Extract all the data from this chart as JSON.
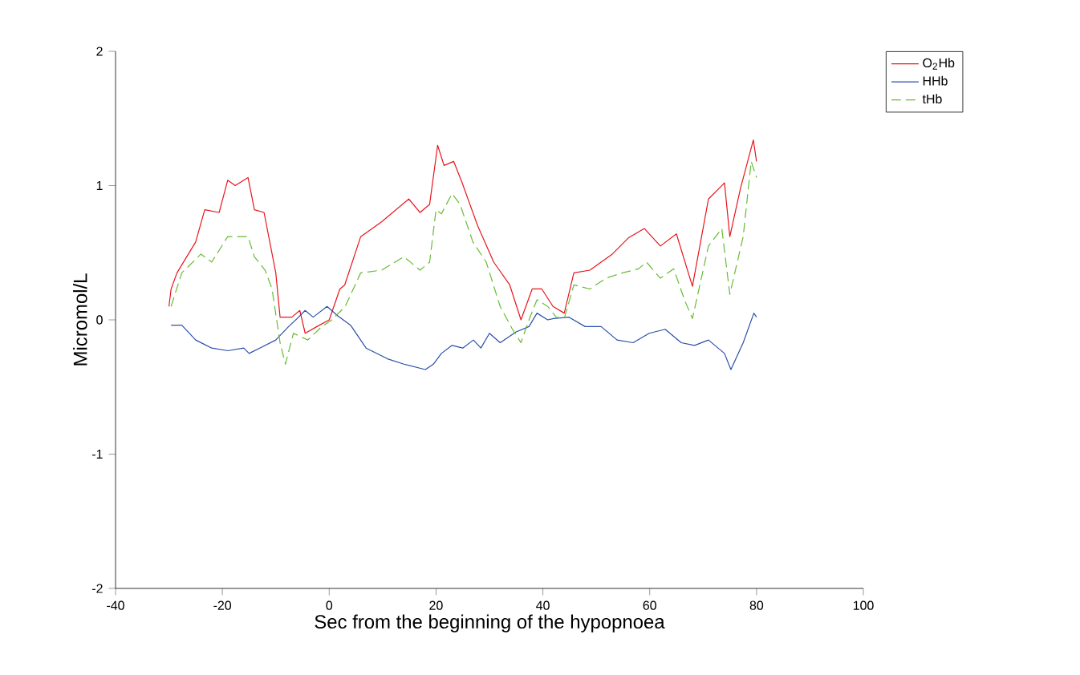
{
  "chart_data": {
    "type": "line",
    "xlabel": "Sec from the beginning of the hypopnoea",
    "ylabel": "Micromol/L",
    "xlim": [
      -40,
      100
    ],
    "ylim": [
      -2,
      2
    ],
    "xticks": [
      -40,
      -20,
      0,
      20,
      40,
      60,
      80,
      100
    ],
    "yticks": [
      -2,
      -1,
      0,
      1,
      2
    ],
    "grid": false,
    "legend": "right",
    "marker": "none",
    "series": [
      {
        "name": "O$_{2}$Hb",
        "color": "#e8141b",
        "line_style": "solid",
        "x": [
          -30,
          -29.6,
          -28.5,
          -25,
          -23.3,
          -20.6,
          -19,
          -17.6,
          -15.2,
          -14,
          -12.2,
          -10,
          -9.2,
          -7,
          -5.5,
          -4.5,
          -2.3,
          0,
          2,
          2.9,
          5.9,
          9.8,
          14.9,
          17,
          18.8,
          20.3,
          21.5,
          23.3,
          24.8,
          27.8,
          30.8,
          33.8,
          35.9,
          38,
          39.8,
          41.9,
          44,
          45.8,
          48.8,
          53,
          56,
          59,
          62,
          65,
          68,
          71,
          74,
          75,
          77,
          79.4,
          80
        ],
        "values": [
          0.1,
          0.23,
          0.35,
          0.58,
          0.82,
          0.8,
          1.04,
          1.0,
          1.06,
          0.82,
          0.8,
          0.35,
          0.02,
          0.02,
          0.07,
          -0.1,
          -0.05,
          0,
          0.23,
          0.26,
          0.62,
          0.73,
          0.9,
          0.8,
          0.86,
          1.3,
          1.15,
          1.18,
          1.03,
          0.7,
          0.43,
          0.26,
          0,
          0.23,
          0.23,
          0.1,
          0.05,
          0.35,
          0.37,
          0.49,
          0.61,
          0.68,
          0.55,
          0.64,
          0.25,
          0.9,
          1.02,
          0.62,
          0.98,
          1.34,
          1.18
        ]
      },
      {
        "name": "HHb",
        "color": "#2a4fa8",
        "line_style": "solid",
        "x": [
          -29.6,
          -27.6,
          -25,
          -22,
          -19,
          -16,
          -15,
          -13,
          -10,
          -7.6,
          -6,
          -4.5,
          -3,
          -0.4,
          1.6,
          4,
          6.9,
          10.9,
          14,
          18,
          19.5,
          21,
          23,
          25,
          27,
          28.4,
          30,
          32,
          35,
          37.4,
          38.9,
          40.9,
          42,
          44.9,
          47.9,
          50.9,
          53.9,
          56.9,
          59.9,
          62.9,
          65.9,
          68.4,
          71,
          74,
          75.2,
          77.5,
          79.5,
          80
        ],
        "values": [
          -0.04,
          -0.04,
          -0.15,
          -0.21,
          -0.23,
          -0.21,
          -0.25,
          -0.21,
          -0.15,
          -0.05,
          0.01,
          0.07,
          0.02,
          0.1,
          0.03,
          -0.04,
          -0.21,
          -0.29,
          -0.33,
          -0.37,
          -0.33,
          -0.25,
          -0.19,
          -0.21,
          -0.15,
          -0.21,
          -0.1,
          -0.17,
          -0.09,
          -0.05,
          0.05,
          0,
          0.01,
          0.02,
          -0.05,
          -0.05,
          -0.15,
          -0.17,
          -0.1,
          -0.07,
          -0.17,
          -0.19,
          -0.15,
          -0.25,
          -0.37,
          -0.17,
          0.05,
          0.02
        ]
      },
      {
        "name": "tHb",
        "color": "#66bb33",
        "line_style": "dashed",
        "x": [
          -29.6,
          -27.6,
          -24,
          -22,
          -19,
          -15.2,
          -14,
          -12,
          -10.7,
          -9.2,
          -8.2,
          -6.7,
          -4,
          -1.4,
          0.5,
          3,
          5.9,
          9.8,
          14,
          17,
          18.8,
          20,
          21,
          23,
          24.5,
          26.9,
          29.4,
          32,
          34.3,
          35.9,
          37.4,
          38.9,
          40.9,
          42.5,
          44,
          45.8,
          48.8,
          51.8,
          54.9,
          57.9,
          59.4,
          62,
          64.5,
          66.5,
          68,
          71,
          73.5,
          75,
          77.5,
          79,
          80
        ],
        "values": [
          0.1,
          0.35,
          0.49,
          0.43,
          0.62,
          0.62,
          0.47,
          0.37,
          0.23,
          -0.17,
          -0.33,
          -0.1,
          -0.15,
          -0.05,
          0,
          0.1,
          0.35,
          0.37,
          0.47,
          0.37,
          0.43,
          0.82,
          0.79,
          0.94,
          0.86,
          0.58,
          0.43,
          0.1,
          -0.07,
          -0.17,
          0,
          0.15,
          0.1,
          0.02,
          0.01,
          0.26,
          0.23,
          0.31,
          0.35,
          0.38,
          0.43,
          0.31,
          0.38,
          0.15,
          0.01,
          0.55,
          0.68,
          0.19,
          0.62,
          1.18,
          1.06
        ]
      }
    ]
  }
}
